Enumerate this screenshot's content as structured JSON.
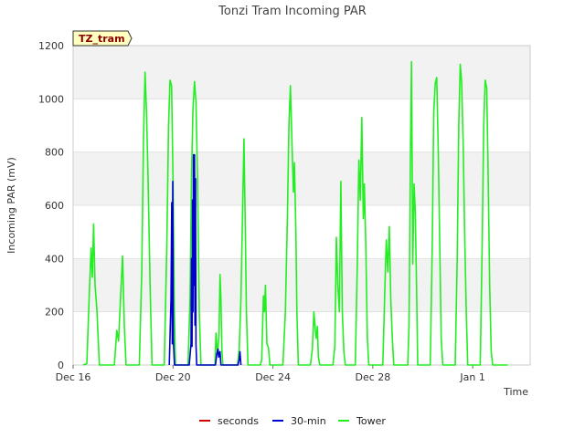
{
  "chart_data": {
    "type": "line",
    "title": "Tonzi Tram Incoming PAR",
    "xlabel": "Time",
    "ylabel": "Incoming PAR (mV)",
    "ylim": [
      0,
      1200
    ],
    "xlim": [
      0,
      18.3
    ],
    "yticks": [
      0,
      200,
      400,
      600,
      800,
      1000,
      1200
    ],
    "xticks": [
      {
        "day": 0,
        "label": "Dec 16"
      },
      {
        "day": 4,
        "label": "Dec 20"
      },
      {
        "day": 8,
        "label": "Dec 24"
      },
      {
        "day": 12,
        "label": "Dec 28"
      },
      {
        "day": 16,
        "label": "Jan 1"
      }
    ],
    "site_badge": "TZ_tram",
    "legend_position": "bottom",
    "series": [
      {
        "name": "seconds",
        "color": "#cc0000",
        "points": []
      },
      {
        "name": "30-min",
        "color": "#0000cc",
        "points": [
          [
            3.85,
            0
          ],
          [
            3.92,
            250
          ],
          [
            3.95,
            610
          ],
          [
            3.97,
            80
          ],
          [
            3.99,
            690
          ],
          [
            4.01,
            100
          ],
          [
            4.03,
            60
          ],
          [
            4.06,
            0
          ],
          [
            4.65,
            0
          ],
          [
            4.72,
            80
          ],
          [
            4.74,
            400
          ],
          [
            4.76,
            70
          ],
          [
            4.78,
            620
          ],
          [
            4.8,
            200
          ],
          [
            4.82,
            790
          ],
          [
            4.84,
            300
          ],
          [
            4.86,
            790
          ],
          [
            4.88,
            150
          ],
          [
            4.9,
            700
          ],
          [
            4.92,
            80
          ],
          [
            4.95,
            0
          ],
          [
            5.7,
            0
          ],
          [
            5.75,
            40
          ],
          [
            5.8,
            60
          ],
          [
            5.83,
            30
          ],
          [
            5.88,
            50
          ],
          [
            5.92,
            0
          ],
          [
            6.6,
            0
          ],
          [
            6.65,
            20
          ],
          [
            6.68,
            50
          ],
          [
            6.72,
            0
          ]
        ]
      },
      {
        "name": "Tower",
        "color": "#22ee22",
        "points": [
          [
            0.4,
            0
          ],
          [
            0.55,
            5
          ],
          [
            0.65,
            280
          ],
          [
            0.72,
            440
          ],
          [
            0.77,
            330
          ],
          [
            0.82,
            530
          ],
          [
            0.88,
            300
          ],
          [
            0.95,
            210
          ],
          [
            1.05,
            0
          ],
          [
            1.65,
            0
          ],
          [
            1.75,
            130
          ],
          [
            1.82,
            90
          ],
          [
            1.92,
            300
          ],
          [
            1.98,
            410
          ],
          [
            2.05,
            150
          ],
          [
            2.12,
            0
          ],
          [
            2.65,
            0
          ],
          [
            2.75,
            350
          ],
          [
            2.82,
            850
          ],
          [
            2.88,
            1100
          ],
          [
            2.94,
            950
          ],
          [
            3.0,
            700
          ],
          [
            3.08,
            300
          ],
          [
            3.16,
            0
          ],
          [
            3.65,
            0
          ],
          [
            3.75,
            450
          ],
          [
            3.82,
            900
          ],
          [
            3.88,
            1070
          ],
          [
            3.94,
            1050
          ],
          [
            4.0,
            700
          ],
          [
            4.05,
            200
          ],
          [
            4.1,
            0
          ],
          [
            4.6,
            0
          ],
          [
            4.68,
            250
          ],
          [
            4.74,
            700
          ],
          [
            4.8,
            960
          ],
          [
            4.86,
            1065
          ],
          [
            4.92,
            990
          ],
          [
            4.98,
            700
          ],
          [
            5.05,
            200
          ],
          [
            5.12,
            0
          ],
          [
            5.68,
            0
          ],
          [
            5.72,
            120
          ],
          [
            5.78,
            40
          ],
          [
            5.84,
            110
          ],
          [
            5.88,
            340
          ],
          [
            5.92,
            250
          ],
          [
            5.96,
            50
          ],
          [
            6.0,
            0
          ],
          [
            6.58,
            0
          ],
          [
            6.65,
            60
          ],
          [
            6.72,
            250
          ],
          [
            6.78,
            540
          ],
          [
            6.84,
            850
          ],
          [
            6.88,
            600
          ],
          [
            6.94,
            200
          ],
          [
            7.0,
            0
          ],
          [
            7.5,
            0
          ],
          [
            7.55,
            20
          ],
          [
            7.62,
            260
          ],
          [
            7.66,
            200
          ],
          [
            7.7,
            300
          ],
          [
            7.76,
            80
          ],
          [
            7.82,
            65
          ],
          [
            7.88,
            0
          ],
          [
            8.4,
            0
          ],
          [
            8.5,
            200
          ],
          [
            8.58,
            550
          ],
          [
            8.64,
            900
          ],
          [
            8.7,
            1050
          ],
          [
            8.76,
            850
          ],
          [
            8.82,
            650
          ],
          [
            8.86,
            760
          ],
          [
            8.92,
            500
          ],
          [
            8.96,
            200
          ],
          [
            9.02,
            0
          ],
          [
            9.5,
            0
          ],
          [
            9.58,
            60
          ],
          [
            9.64,
            200
          ],
          [
            9.7,
            130
          ],
          [
            9.74,
            100
          ],
          [
            9.78,
            145
          ],
          [
            9.82,
            30
          ],
          [
            9.88,
            0
          ],
          [
            10.4,
            0
          ],
          [
            10.48,
            70
          ],
          [
            10.54,
            480
          ],
          [
            10.6,
            300
          ],
          [
            10.66,
            200
          ],
          [
            10.72,
            690
          ],
          [
            10.78,
            200
          ],
          [
            10.84,
            50
          ],
          [
            10.9,
            0
          ],
          [
            11.3,
            0
          ],
          [
            11.38,
            380
          ],
          [
            11.44,
            770
          ],
          [
            11.5,
            620
          ],
          [
            11.56,
            930
          ],
          [
            11.62,
            550
          ],
          [
            11.66,
            680
          ],
          [
            11.72,
            450
          ],
          [
            11.78,
            100
          ],
          [
            11.84,
            0
          ],
          [
            12.4,
            0
          ],
          [
            12.48,
            280
          ],
          [
            12.54,
            470
          ],
          [
            12.6,
            350
          ],
          [
            12.66,
            520
          ],
          [
            12.72,
            250
          ],
          [
            12.78,
            100
          ],
          [
            12.84,
            0
          ],
          [
            13.4,
            0
          ],
          [
            13.45,
            150
          ],
          [
            13.5,
            750
          ],
          [
            13.55,
            1140
          ],
          [
            13.6,
            380
          ],
          [
            13.65,
            680
          ],
          [
            13.7,
            580
          ],
          [
            13.75,
            300
          ],
          [
            13.8,
            0
          ],
          [
            14.3,
            0
          ],
          [
            14.38,
            450
          ],
          [
            14.44,
            950
          ],
          [
            14.5,
            1060
          ],
          [
            14.56,
            1080
          ],
          [
            14.62,
            800
          ],
          [
            14.68,
            450
          ],
          [
            14.74,
            100
          ],
          [
            14.8,
            0
          ],
          [
            15.3,
            0
          ],
          [
            15.38,
            400
          ],
          [
            15.44,
            900
          ],
          [
            15.5,
            1130
          ],
          [
            15.56,
            1060
          ],
          [
            15.62,
            820
          ],
          [
            15.68,
            480
          ],
          [
            15.74,
            200
          ],
          [
            15.8,
            0
          ],
          [
            16.3,
            0
          ],
          [
            16.38,
            450
          ],
          [
            16.44,
            900
          ],
          [
            16.5,
            1070
          ],
          [
            16.56,
            1040
          ],
          [
            16.62,
            700
          ],
          [
            16.68,
            300
          ],
          [
            16.74,
            50
          ],
          [
            16.8,
            0
          ],
          [
            17.4,
            0
          ]
        ]
      }
    ]
  }
}
